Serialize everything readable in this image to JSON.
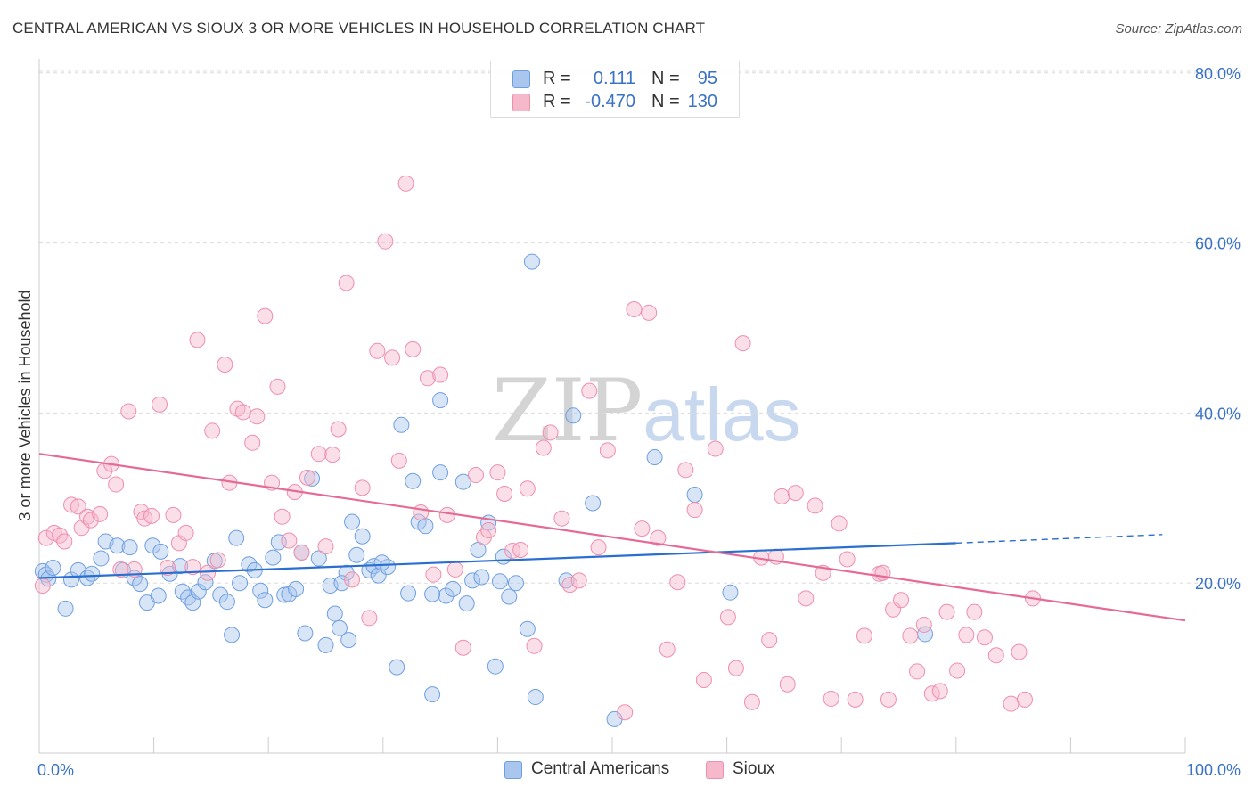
{
  "title": "CENTRAL AMERICAN VS SIOUX 3 OR MORE VEHICLES IN HOUSEHOLD CORRELATION CHART",
  "source": "Source: ZipAtlas.com",
  "watermark": {
    "zip": "ZIP",
    "atlas": "atlas"
  },
  "legend_top": [
    {
      "r_label": "R =",
      "r_value": "0.111",
      "n_label": "N =",
      "n_value": "95",
      "color": "#a9c6ee",
      "border": "#6f9fe0"
    },
    {
      "r_label": "R =",
      "r_value": "-0.470",
      "n_label": "N =",
      "n_value": "130",
      "color": "#f6b8cb",
      "border": "#ee8fac"
    }
  ],
  "legend_bottom": [
    "Central Americans",
    "Sioux"
  ],
  "chart_data": {
    "type": "scatter",
    "title": "CENTRAL AMERICAN VS SIOUX 3 OR MORE VEHICLES IN HOUSEHOLD CORRELATION CHART",
    "xlabel": "",
    "ylabel": "3 or more Vehicles in Household",
    "xlim": [
      0,
      100
    ],
    "ylim": [
      0,
      83
    ],
    "x_ticks": [
      "0.0%",
      "100.0%"
    ],
    "y_ticks": [
      {
        "value": 20,
        "label": "20.0%"
      },
      {
        "value": 40,
        "label": "40.0%"
      },
      {
        "value": 60,
        "label": "60.0%"
      },
      {
        "value": 80,
        "label": "80.0%"
      }
    ],
    "grid": "horizontal dashed",
    "colors": {
      "central": "#6f9fe0",
      "sioux": "#ee8fac",
      "central_line": "#2a6fcf",
      "sioux_line": "#e56b96",
      "tick_label": "#3a72c4"
    },
    "series": [
      {
        "name": "Central Americans",
        "trend": {
          "x0": 0,
          "y0": 20.6,
          "x1": 80,
          "y1": 24.7,
          "dashed_to": 98,
          "dashed_y": 25.7
        },
        "points": [
          [
            0.3,
            21.4
          ],
          [
            0.6,
            21.0
          ],
          [
            0.8,
            20.5
          ],
          [
            1.2,
            21.8
          ],
          [
            2.3,
            17.0
          ],
          [
            2.8,
            20.4
          ],
          [
            3.4,
            21.5
          ],
          [
            4.2,
            20.6
          ],
          [
            4.6,
            21.1
          ],
          [
            5.4,
            22.9
          ],
          [
            5.8,
            24.9
          ],
          [
            6.8,
            24.4
          ],
          [
            7.3,
            21.5
          ],
          [
            7.9,
            24.2
          ],
          [
            8.3,
            20.6
          ],
          [
            8.8,
            19.9
          ],
          [
            9.4,
            17.7
          ],
          [
            9.9,
            24.4
          ],
          [
            10.6,
            23.7
          ],
          [
            10.4,
            18.5
          ],
          [
            11.4,
            21.1
          ],
          [
            12.3,
            22.0
          ],
          [
            12.5,
            19.0
          ],
          [
            13.0,
            18.3
          ],
          [
            13.4,
            17.7
          ],
          [
            13.9,
            19.0
          ],
          [
            14.5,
            20.1
          ],
          [
            15.3,
            22.6
          ],
          [
            15.8,
            18.6
          ],
          [
            16.4,
            17.8
          ],
          [
            16.8,
            13.9
          ],
          [
            17.2,
            25.3
          ],
          [
            17.5,
            20.0
          ],
          [
            18.3,
            22.2
          ],
          [
            18.8,
            21.5
          ],
          [
            19.3,
            19.1
          ],
          [
            19.7,
            18.0
          ],
          [
            20.4,
            23.0
          ],
          [
            20.9,
            24.8
          ],
          [
            21.4,
            18.6
          ],
          [
            21.8,
            18.7
          ],
          [
            22.4,
            19.3
          ],
          [
            22.9,
            23.6
          ],
          [
            23.2,
            14.1
          ],
          [
            23.8,
            32.3
          ],
          [
            24.4,
            22.9
          ],
          [
            25.0,
            12.7
          ],
          [
            25.4,
            19.7
          ],
          [
            25.8,
            16.4
          ],
          [
            26.2,
            14.7
          ],
          [
            26.8,
            21.2
          ],
          [
            27.0,
            13.3
          ],
          [
            27.3,
            27.2
          ],
          [
            27.7,
            23.3
          ],
          [
            28.2,
            25.5
          ],
          [
            28.8,
            21.5
          ],
          [
            29.2,
            22.0
          ],
          [
            29.6,
            20.9
          ],
          [
            30.4,
            21.9
          ],
          [
            31.2,
            10.1
          ],
          [
            31.6,
            38.6
          ],
          [
            32.2,
            18.8
          ],
          [
            32.6,
            32.0
          ],
          [
            33.1,
            27.2
          ],
          [
            33.7,
            26.7
          ],
          [
            34.3,
            6.9
          ],
          [
            35.0,
            33.0
          ],
          [
            35.5,
            18.5
          ],
          [
            36.1,
            19.3
          ],
          [
            37.0,
            31.9
          ],
          [
            37.3,
            17.6
          ],
          [
            37.8,
            20.3
          ],
          [
            38.3,
            23.9
          ],
          [
            38.6,
            20.7
          ],
          [
            39.2,
            27.1
          ],
          [
            39.8,
            10.2
          ],
          [
            40.2,
            20.2
          ],
          [
            40.5,
            23.1
          ],
          [
            41.0,
            18.4
          ],
          [
            41.6,
            20.0
          ],
          [
            42.6,
            14.6
          ],
          [
            43.0,
            57.8
          ],
          [
            43.3,
            6.6
          ],
          [
            46.0,
            20.3
          ],
          [
            46.6,
            39.7
          ],
          [
            48.3,
            29.4
          ],
          [
            50.2,
            4.0
          ],
          [
            53.7,
            34.8
          ],
          [
            57.2,
            30.4
          ],
          [
            60.3,
            18.9
          ],
          [
            34.3,
            18.7
          ],
          [
            35.0,
            41.5
          ],
          [
            26.4,
            20.0
          ],
          [
            29.9,
            22.4
          ],
          [
            77.3,
            14.0
          ]
        ]
      },
      {
        "name": "Sioux",
        "trend": {
          "x0": 0,
          "y0": 35.2,
          "x1": 100,
          "y1": 15.6
        },
        "points": [
          [
            0.3,
            19.7
          ],
          [
            0.6,
            25.3
          ],
          [
            1.3,
            25.9
          ],
          [
            1.8,
            25.6
          ],
          [
            2.2,
            24.9
          ],
          [
            2.8,
            29.2
          ],
          [
            3.4,
            29.0
          ],
          [
            3.7,
            26.5
          ],
          [
            4.2,
            27.8
          ],
          [
            4.5,
            27.4
          ],
          [
            5.3,
            28.1
          ],
          [
            5.7,
            33.2
          ],
          [
            6.3,
            34.0
          ],
          [
            6.7,
            31.6
          ],
          [
            7.1,
            21.6
          ],
          [
            7.8,
            40.2
          ],
          [
            8.3,
            21.6
          ],
          [
            8.9,
            28.4
          ],
          [
            9.2,
            27.6
          ],
          [
            9.8,
            27.9
          ],
          [
            10.5,
            41.0
          ],
          [
            11.2,
            21.8
          ],
          [
            11.7,
            28.0
          ],
          [
            12.2,
            24.7
          ],
          [
            12.8,
            25.9
          ],
          [
            13.4,
            21.9
          ],
          [
            13.8,
            48.6
          ],
          [
            14.7,
            21.2
          ],
          [
            15.1,
            37.9
          ],
          [
            15.6,
            22.7
          ],
          [
            16.2,
            45.7
          ],
          [
            16.6,
            31.8
          ],
          [
            17.3,
            40.5
          ],
          [
            17.8,
            40.1
          ],
          [
            18.6,
            36.5
          ],
          [
            19.0,
            39.6
          ],
          [
            19.7,
            51.4
          ],
          [
            20.3,
            31.8
          ],
          [
            20.8,
            43.1
          ],
          [
            21.2,
            27.8
          ],
          [
            21.8,
            25.0
          ],
          [
            22.3,
            30.7
          ],
          [
            22.9,
            23.6
          ],
          [
            23.4,
            32.4
          ],
          [
            24.4,
            35.2
          ],
          [
            25.0,
            24.3
          ],
          [
            25.6,
            35.1
          ],
          [
            26.1,
            38.1
          ],
          [
            26.8,
            55.3
          ],
          [
            27.3,
            20.4
          ],
          [
            28.2,
            31.2
          ],
          [
            28.8,
            15.9
          ],
          [
            29.5,
            47.3
          ],
          [
            30.2,
            60.2
          ],
          [
            30.8,
            46.5
          ],
          [
            31.4,
            34.4
          ],
          [
            32.0,
            67.0
          ],
          [
            32.6,
            47.5
          ],
          [
            33.3,
            28.3
          ],
          [
            33.9,
            44.1
          ],
          [
            34.4,
            21.0
          ],
          [
            35.0,
            44.5
          ],
          [
            35.6,
            28.0
          ],
          [
            36.3,
            21.6
          ],
          [
            37.0,
            12.4
          ],
          [
            38.1,
            32.7
          ],
          [
            38.8,
            25.4
          ],
          [
            39.2,
            26.2
          ],
          [
            40.0,
            33.0
          ],
          [
            40.6,
            30.5
          ],
          [
            41.3,
            23.8
          ],
          [
            42.0,
            23.9
          ],
          [
            42.6,
            31.1
          ],
          [
            43.2,
            12.6
          ],
          [
            44.0,
            35.9
          ],
          [
            44.6,
            37.7
          ],
          [
            45.6,
            27.6
          ],
          [
            46.3,
            19.8
          ],
          [
            47.1,
            20.3
          ],
          [
            48.0,
            42.6
          ],
          [
            48.8,
            24.2
          ],
          [
            49.6,
            35.6
          ],
          [
            51.1,
            4.8
          ],
          [
            51.9,
            52.2
          ],
          [
            52.6,
            26.4
          ],
          [
            53.2,
            51.8
          ],
          [
            54.0,
            25.3
          ],
          [
            54.8,
            12.2
          ],
          [
            55.7,
            20.1
          ],
          [
            56.4,
            33.3
          ],
          [
            57.2,
            28.6
          ],
          [
            58.0,
            8.6
          ],
          [
            59.0,
            35.8
          ],
          [
            60.1,
            16.0
          ],
          [
            60.8,
            10.0
          ],
          [
            61.4,
            48.2
          ],
          [
            62.2,
            6.0
          ],
          [
            63.0,
            23.0
          ],
          [
            63.7,
            13.3
          ],
          [
            64.3,
            23.1
          ],
          [
            64.8,
            30.2
          ],
          [
            65.3,
            8.1
          ],
          [
            66.0,
            30.6
          ],
          [
            66.9,
            18.2
          ],
          [
            67.7,
            29.1
          ],
          [
            68.4,
            21.2
          ],
          [
            69.1,
            6.4
          ],
          [
            69.8,
            27.0
          ],
          [
            70.5,
            22.8
          ],
          [
            71.2,
            6.3
          ],
          [
            72.0,
            13.8
          ],
          [
            73.3,
            21.1
          ],
          [
            73.6,
            21.2
          ],
          [
            74.1,
            6.3
          ],
          [
            74.5,
            16.9
          ],
          [
            75.2,
            18.0
          ],
          [
            76.0,
            13.8
          ],
          [
            76.6,
            9.6
          ],
          [
            77.2,
            15.1
          ],
          [
            77.9,
            7.0
          ],
          [
            78.6,
            7.3
          ],
          [
            79.2,
            16.6
          ],
          [
            80.1,
            9.7
          ],
          [
            80.9,
            13.9
          ],
          [
            81.6,
            16.6
          ],
          [
            82.5,
            13.6
          ],
          [
            83.5,
            11.5
          ],
          [
            84.8,
            5.8
          ],
          [
            85.5,
            11.9
          ],
          [
            86.0,
            6.3
          ],
          [
            86.7,
            18.2
          ]
        ]
      }
    ]
  }
}
